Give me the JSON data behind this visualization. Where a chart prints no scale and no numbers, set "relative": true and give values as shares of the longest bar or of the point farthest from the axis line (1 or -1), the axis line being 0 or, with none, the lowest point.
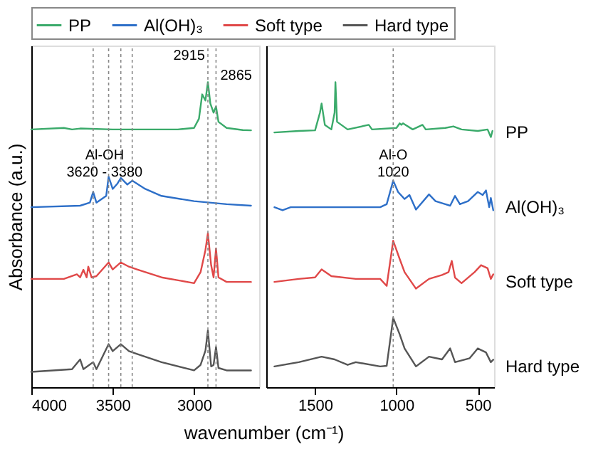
{
  "chart_data": [
    {
      "type": "line",
      "relative": true,
      "ylabel": "Absorbance (a.u.)",
      "xlabel": "wavenumber (cm⁻¹)",
      "xlim": [
        4000,
        2600
      ],
      "xticks": [
        4000,
        3500,
        3000
      ],
      "legend": "top",
      "grid": false,
      "tick_labels": "x",
      "line_style": "solid",
      "series": [
        {
          "name": "PP",
          "color": "#3aaa6a",
          "x": [
            4000,
            3800,
            3750,
            3700,
            3500,
            3100,
            3000,
            2970,
            2950,
            2930,
            2915,
            2900,
            2880,
            2865,
            2850,
            2800,
            2700,
            2650
          ],
          "values": [
            0.845,
            0.85,
            0.845,
            0.848,
            0.845,
            0.845,
            0.85,
            0.88,
            0.96,
            0.94,
            1.0,
            0.93,
            0.9,
            0.92,
            0.87,
            0.85,
            0.843,
            0.842
          ]
        },
        {
          "name": "Al(OH)₃",
          "color": "#2d6fc8",
          "x": [
            4000,
            3700,
            3640,
            3620,
            3600,
            3540,
            3525,
            3500,
            3470,
            3450,
            3410,
            3380,
            3300,
            3200,
            3000,
            2800,
            2650
          ],
          "values": [
            0.59,
            0.595,
            0.605,
            0.64,
            0.605,
            0.627,
            0.69,
            0.65,
            0.668,
            0.686,
            0.664,
            0.677,
            0.65,
            0.627,
            0.61,
            0.6,
            0.595
          ]
        },
        {
          "name": "Soft type",
          "color": "#e04848",
          "x": [
            4000,
            3800,
            3720,
            3700,
            3680,
            3660,
            3650,
            3630,
            3600,
            3525,
            3500,
            3450,
            3400,
            3350,
            3200,
            3000,
            2960,
            2930,
            2915,
            2895,
            2880,
            2865,
            2850,
            2800,
            2650
          ],
          "values": [
            0.355,
            0.355,
            0.37,
            0.36,
            0.385,
            0.36,
            0.395,
            0.36,
            0.364,
            0.409,
            0.386,
            0.409,
            0.395,
            0.386,
            0.36,
            0.341,
            0.377,
            0.45,
            0.505,
            0.4,
            0.36,
            0.455,
            0.36,
            0.345,
            0.345
          ]
        },
        {
          "name": "Hard type",
          "color": "#555555",
          "x": [
            4000,
            3750,
            3700,
            3680,
            3620,
            3600,
            3525,
            3500,
            3450,
            3400,
            3350,
            3200,
            3000,
            2960,
            2930,
            2915,
            2895,
            2880,
            2865,
            2850,
            2800,
            2650
          ],
          "values": [
            0.05,
            0.059,
            0.091,
            0.059,
            0.082,
            0.059,
            0.141,
            0.118,
            0.141,
            0.118,
            0.109,
            0.082,
            0.055,
            0.073,
            0.12,
            0.186,
            0.068,
            0.073,
            0.132,
            0.063,
            0.055,
            0.055
          ]
        }
      ],
      "ref_lines": [
        {
          "axis": "x",
          "value": 3620,
          "label": null,
          "color": "#888888",
          "line_style": "dotted"
        },
        {
          "axis": "x",
          "value": 3525,
          "label": null,
          "color": "#888888",
          "line_style": "dotted"
        },
        {
          "axis": "x",
          "value": 3450,
          "label": null,
          "color": "#888888",
          "line_style": "dotted"
        },
        {
          "axis": "x",
          "value": 3380,
          "label": null,
          "color": "#888888",
          "line_style": "dotted"
        },
        {
          "axis": "x",
          "value": 2915,
          "label": "2915",
          "color": "#888888",
          "line_style": "dotted"
        },
        {
          "axis": "x",
          "value": 2865,
          "label": "2865",
          "color": "#888888",
          "line_style": "dotted"
        }
      ],
      "annotations": [
        {
          "text": "Al-OH\n3620 - 3380",
          "x": 3550,
          "y": 0.76
        }
      ]
    },
    {
      "type": "line",
      "relative": true,
      "xlim": [
        1800,
        400
      ],
      "xticks": [
        1500,
        1000,
        500
      ],
      "grid": false,
      "tick_labels": "x",
      "line_style": "solid",
      "series": [
        {
          "name": "PP",
          "color": "#3aaa6a",
          "x": [
            1750,
            1600,
            1500,
            1470,
            1460,
            1440,
            1400,
            1380,
            1375,
            1365,
            1300,
            1170,
            1150,
            1000,
            980,
            970,
            960,
            900,
            840,
            820,
            700,
            650,
            600,
            500,
            440,
            420,
            410
          ],
          "values": [
            0.835,
            0.84,
            0.842,
            0.9,
            0.93,
            0.86,
            0.845,
            0.9,
            1.0,
            0.87,
            0.845,
            0.86,
            0.845,
            0.85,
            0.865,
            0.86,
            0.865,
            0.845,
            0.86,
            0.845,
            0.85,
            0.855,
            0.845,
            0.84,
            0.845,
            0.82,
            0.84
          ]
        },
        {
          "name": "Al(OH)₃",
          "color": "#2d6fc8",
          "x": [
            1750,
            1700,
            1650,
            1300,
            1100,
            1060,
            1020,
            990,
            950,
            920,
            880,
            800,
            760,
            700,
            670,
            640,
            610,
            560,
            500,
            470,
            450,
            430,
            420,
            405
          ],
          "values": [
            0.59,
            0.58,
            0.59,
            0.59,
            0.59,
            0.6,
            0.677,
            0.64,
            0.617,
            0.63,
            0.582,
            0.632,
            0.61,
            0.6,
            0.595,
            0.627,
            0.6,
            0.61,
            0.64,
            0.63,
            0.645,
            0.59,
            0.62,
            0.58
          ]
        },
        {
          "name": "Soft type",
          "color": "#e04848",
          "x": [
            1750,
            1600,
            1500,
            1460,
            1400,
            1250,
            1100,
            1060,
            1020,
            980,
            950,
            880,
            800,
            720,
            680,
            660,
            640,
            600,
            520,
            480,
            440,
            420,
            405
          ],
          "values": [
            0.345,
            0.355,
            0.36,
            0.386,
            0.364,
            0.355,
            0.355,
            0.332,
            0.48,
            0.42,
            0.377,
            0.323,
            0.355,
            0.368,
            0.377,
            0.414,
            0.359,
            0.341,
            0.377,
            0.4,
            0.39,
            0.355,
            0.37
          ]
        },
        {
          "name": "Hard type",
          "color": "#555555",
          "x": [
            1750,
            1600,
            1460,
            1380,
            1300,
            1250,
            1100,
            1060,
            1020,
            980,
            950,
            880,
            800,
            720,
            670,
            640,
            550,
            500,
            450,
            420,
            405
          ],
          "values": [
            0.068,
            0.082,
            0.1,
            0.091,
            0.073,
            0.082,
            0.068,
            0.07,
            0.227,
            0.173,
            0.127,
            0.068,
            0.1,
            0.091,
            0.127,
            0.082,
            0.095,
            0.127,
            0.114,
            0.082,
            0.09
          ]
        }
      ],
      "ref_lines": [
        {
          "axis": "x",
          "value": 1020,
          "label": null,
          "color": "#888888",
          "line_style": "dotted"
        }
      ],
      "annotations": [
        {
          "text": "Al-O\n1020",
          "x": 1020,
          "y": 0.76
        }
      ]
    }
  ]
}
